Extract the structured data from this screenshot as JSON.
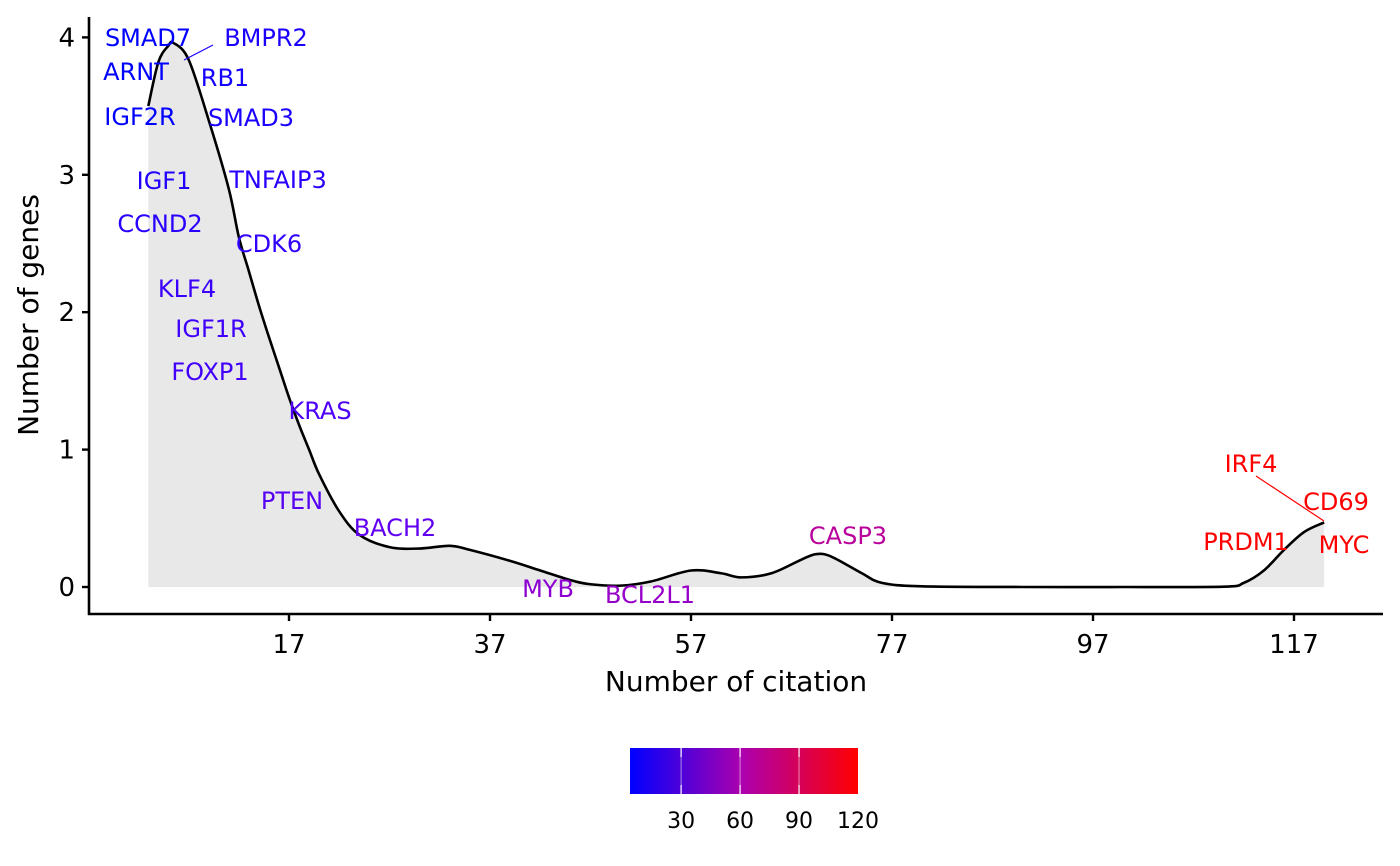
{
  "chart_data": {
    "type": "area",
    "subtype": "density",
    "title": "",
    "xlabel": "Number of citation",
    "ylabel": "Number of genes",
    "xlim": [
      -3,
      126
    ],
    "ylim": [
      -0.2,
      4.15
    ],
    "x_ticks": [
      17,
      37,
      57,
      77,
      97,
      117
    ],
    "y_ticks": [
      0,
      1,
      2,
      3,
      4
    ],
    "grid": false,
    "fill_color": "#e8e8e8",
    "line_color": "#000000",
    "density_curve": {
      "x": [
        3,
        4,
        5,
        5.5,
        7,
        9,
        11,
        12,
        13,
        14,
        15,
        16,
        17,
        18,
        19,
        20,
        22,
        24,
        27,
        30,
        33,
        35,
        39,
        42,
        45,
        47,
        50,
        53,
        57,
        60,
        62,
        65,
        68,
        69.5,
        71,
        74,
        76,
        80,
        90,
        100,
        110,
        112,
        114,
        116,
        118,
        120
      ],
      "y": [
        3.5,
        3.82,
        3.94,
        3.96,
        3.84,
        3.4,
        2.9,
        2.55,
        2.3,
        2.05,
        1.82,
        1.6,
        1.38,
        1.18,
        1.0,
        0.82,
        0.55,
        0.38,
        0.29,
        0.28,
        0.3,
        0.27,
        0.19,
        0.12,
        0.05,
        0.02,
        0.01,
        0.04,
        0.12,
        0.1,
        0.07,
        0.1,
        0.2,
        0.24,
        0.22,
        0.1,
        0.03,
        0.005,
        0.0,
        0.0,
        0.002,
        0.03,
        0.12,
        0.27,
        0.4,
        0.47
      ]
    },
    "genes": [
      {
        "name": "SMAD7",
        "citations": 4
      },
      {
        "name": "BMPR2",
        "citations": 6
      },
      {
        "name": "ARNT",
        "citations": 4
      },
      {
        "name": "RB1",
        "citations": 5
      },
      {
        "name": "IGF2R",
        "citations": 4
      },
      {
        "name": "SMAD3",
        "citations": 6
      },
      {
        "name": "IGF1",
        "citations": 7
      },
      {
        "name": "TNFAIP3",
        "citations": 8
      },
      {
        "name": "CCND2",
        "citations": 8
      },
      {
        "name": "CDK6",
        "citations": 10
      },
      {
        "name": "KLF4",
        "citations": 12
      },
      {
        "name": "IGF1R",
        "citations": 13
      },
      {
        "name": "FOXP1",
        "citations": 14
      },
      {
        "name": "KRAS",
        "citations": 17
      },
      {
        "name": "PTEN",
        "citations": 20
      },
      {
        "name": "BACH2",
        "citations": 24
      },
      {
        "name": "MYB",
        "citations": 43
      },
      {
        "name": "BCL2L1",
        "citations": 48
      },
      {
        "name": "CASP3",
        "citations": 69
      },
      {
        "name": "IRF4",
        "citations": 120
      },
      {
        "name": "CD69",
        "citations": 120
      },
      {
        "name": "PRDM1",
        "citations": 120
      },
      {
        "name": "MYC",
        "citations": 120
      }
    ],
    "colorbar": {
      "low_color": "#0000FF",
      "high_color": "#FF0000",
      "range": [
        4,
        120
      ],
      "ticks": [
        30,
        60,
        90,
        120
      ],
      "placement": "bottom"
    }
  }
}
